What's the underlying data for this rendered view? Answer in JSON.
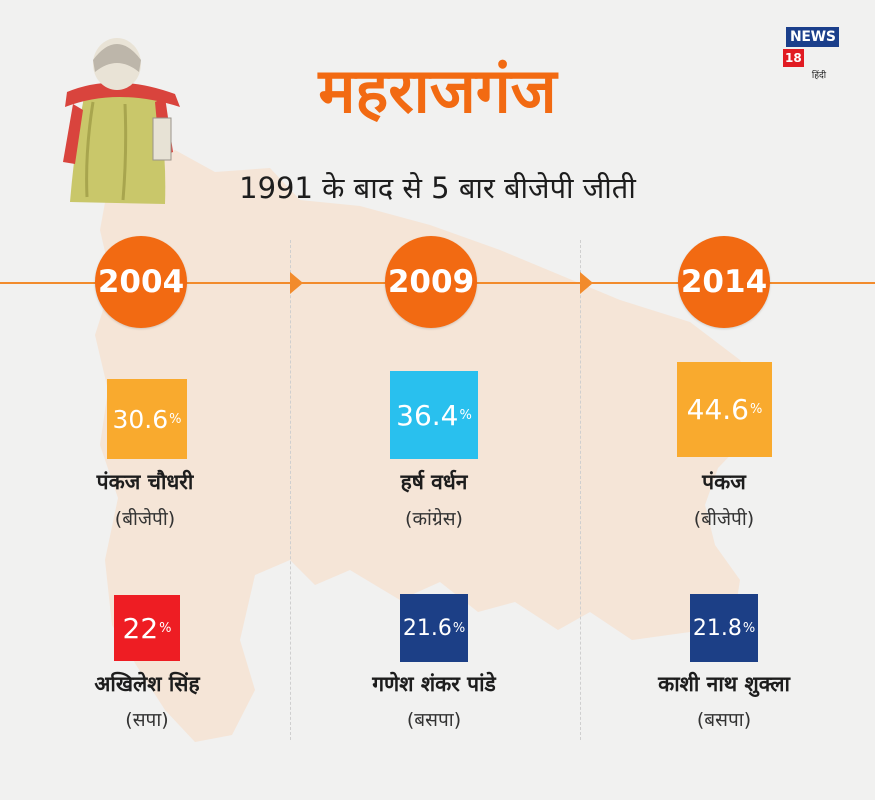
{
  "header": {
    "title": "महराजगंज",
    "subtitle": "1991 के बाद से 5 बार बीजेपी जीती"
  },
  "logo": {
    "brand": "NEWS",
    "number": "18",
    "sub": "हिंदी"
  },
  "colors": {
    "accent": "#f26a12",
    "bjp": "#f9aa2e",
    "congress": "#29c0ee",
    "sp": "#ee1d23",
    "bsp": "#1c3f86"
  },
  "percent_sign": "%",
  "chart_data": {
    "type": "table",
    "columns": [
      {
        "year": "2004",
        "winner": {
          "vote_share": "30.6",
          "name": "पंकज चौधरी",
          "party": "(बीजेपी)",
          "color": "#f9aa2e"
        },
        "runner_up": {
          "vote_share": "22",
          "name": "अखिलेश सिंह",
          "party": "(सपा)",
          "color": "#ee1d23"
        }
      },
      {
        "year": "2009",
        "winner": {
          "vote_share": "36.4",
          "name": "हर्ष वर्धन",
          "party": "(कांग्रेस)",
          "color": "#29c0ee"
        },
        "runner_up": {
          "vote_share": "21.6",
          "name": "गणेश शंकर पांडे",
          "party": "(बसपा)",
          "color": "#1c3f86"
        }
      },
      {
        "year": "2014",
        "winner": {
          "vote_share": "44.6",
          "name": "पंकज",
          "party": "(बीजेपी)",
          "color": "#f9aa2e"
        },
        "runner_up": {
          "vote_share": "21.8",
          "name": "काशी नाथ शुक्ला",
          "party": "(बसपा)",
          "color": "#1c3f86"
        }
      }
    ]
  }
}
